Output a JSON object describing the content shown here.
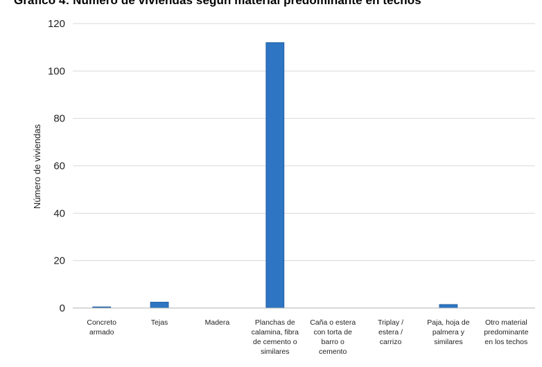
{
  "chart_data": {
    "type": "bar",
    "title": "Gráfico 4: Número de viviendas según material predominante en techos",
    "xlabel": "",
    "ylabel": "Número de viviendas",
    "ylim": [
      0,
      120
    ],
    "yticks": [
      0,
      20,
      40,
      60,
      80,
      100,
      120
    ],
    "grid": true,
    "categories": [
      [
        "Concreto",
        "armado"
      ],
      [
        "Tejas"
      ],
      [
        "Madera"
      ],
      [
        "Planchas de",
        "calamina, fibra",
        "de cemento o",
        "similares"
      ],
      [
        "Caña o estera",
        "con torta de",
        "barro o",
        "cemento"
      ],
      [
        "Triplay /",
        "estera /",
        "carrizo"
      ],
      [
        "Paja, hoja de",
        "palmera y",
        "similares"
      ],
      [
        "Otro material",
        "predominante",
        "en los techos"
      ]
    ],
    "values": [
      0.5,
      2.5,
      0,
      112,
      0,
      0,
      1.5,
      0
    ],
    "colors": {
      "bar": "#2e75c3",
      "bar_edge": "#1f5a9c",
      "grid": "#d9d9d9",
      "axis": "#b0b0b0"
    }
  }
}
